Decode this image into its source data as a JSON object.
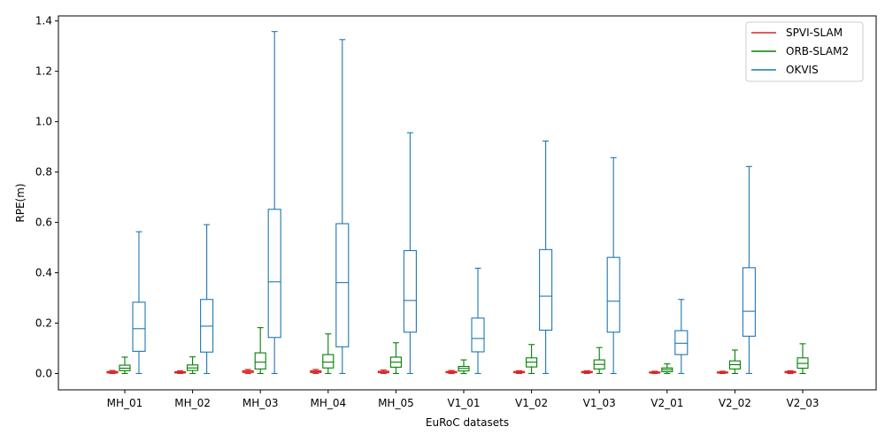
{
  "chart_data": {
    "type": "box",
    "title": "",
    "xlabel": "EuRoC datasets",
    "ylabel": "RPE(m)",
    "ylim": [
      -0.065,
      1.42
    ],
    "yticks": [
      0.0,
      0.2,
      0.4,
      0.6,
      0.8,
      1.0,
      1.2,
      1.4
    ],
    "ytick_labels": [
      "0.0",
      "0.2",
      "0.4",
      "0.6",
      "0.8",
      "1.0",
      "1.2",
      "1.4"
    ],
    "grid": false,
    "legend_position": "top-right",
    "categories": [
      "MH_01",
      "MH_02",
      "MH_03",
      "MH_04",
      "MH_05",
      "V1_01",
      "V1_02",
      "V1_03",
      "V2_01",
      "V2_02",
      "V2_03"
    ],
    "series": [
      {
        "name": "SPVI-SLAM",
        "color": "#d62728",
        "boxes": [
          {
            "category": "MH_01",
            "min": 0.0,
            "q1": 0.002,
            "median": 0.005,
            "q3": 0.008,
            "max": 0.012
          },
          {
            "category": "MH_02",
            "min": 0.0,
            "q1": 0.002,
            "median": 0.004,
            "q3": 0.007,
            "max": 0.011
          },
          {
            "category": "MH_03",
            "min": 0.0,
            "q1": 0.004,
            "median": 0.008,
            "q3": 0.011,
            "max": 0.016
          },
          {
            "category": "MH_04",
            "min": 0.0,
            "q1": 0.004,
            "median": 0.007,
            "q3": 0.011,
            "max": 0.016
          },
          {
            "category": "MH_05",
            "min": 0.0,
            "q1": 0.003,
            "median": 0.006,
            "q3": 0.009,
            "max": 0.014
          },
          {
            "category": "V1_01",
            "min": 0.0,
            "q1": 0.003,
            "median": 0.005,
            "q3": 0.008,
            "max": 0.012
          },
          {
            "category": "V1_02",
            "min": 0.0,
            "q1": 0.003,
            "median": 0.005,
            "q3": 0.008,
            "max": 0.011
          },
          {
            "category": "V1_03",
            "min": 0.0,
            "q1": 0.003,
            "median": 0.005,
            "q3": 0.008,
            "max": 0.011
          },
          {
            "category": "V2_01",
            "min": 0.0,
            "q1": 0.002,
            "median": 0.004,
            "q3": 0.006,
            "max": 0.009
          },
          {
            "category": "V2_02",
            "min": 0.0,
            "q1": 0.002,
            "median": 0.004,
            "q3": 0.006,
            "max": 0.009
          },
          {
            "category": "V2_03",
            "min": 0.0,
            "q1": 0.003,
            "median": 0.005,
            "q3": 0.008,
            "max": 0.011
          }
        ]
      },
      {
        "name": "ORB-SLAM2",
        "color": "#008000",
        "boxes": [
          {
            "category": "MH_01",
            "min": 0.0,
            "q1": 0.011,
            "median": 0.021,
            "q3": 0.033,
            "max": 0.065
          },
          {
            "category": "MH_02",
            "min": 0.0,
            "q1": 0.012,
            "median": 0.022,
            "q3": 0.034,
            "max": 0.066
          },
          {
            "category": "MH_03",
            "min": 0.0,
            "q1": 0.018,
            "median": 0.045,
            "q3": 0.082,
            "max": 0.182
          },
          {
            "category": "MH_04",
            "min": 0.0,
            "q1": 0.022,
            "median": 0.045,
            "q3": 0.075,
            "max": 0.157
          },
          {
            "category": "MH_05",
            "min": 0.0,
            "q1": 0.025,
            "median": 0.045,
            "q3": 0.065,
            "max": 0.122
          },
          {
            "category": "V1_01",
            "min": 0.0,
            "q1": 0.01,
            "median": 0.02,
            "q3": 0.028,
            "max": 0.054
          },
          {
            "category": "V1_02",
            "min": 0.0,
            "q1": 0.026,
            "median": 0.045,
            "q3": 0.062,
            "max": 0.115
          },
          {
            "category": "V1_03",
            "min": 0.0,
            "q1": 0.018,
            "median": 0.036,
            "q3": 0.054,
            "max": 0.103
          },
          {
            "category": "V2_01",
            "min": 0.0,
            "q1": 0.007,
            "median": 0.015,
            "q3": 0.022,
            "max": 0.038
          },
          {
            "category": "V2_02",
            "min": 0.0,
            "q1": 0.018,
            "median": 0.035,
            "q3": 0.05,
            "max": 0.093
          },
          {
            "category": "V2_03",
            "min": 0.0,
            "q1": 0.021,
            "median": 0.04,
            "q3": 0.062,
            "max": 0.118
          }
        ]
      },
      {
        "name": "OKVIS",
        "color": "#1f77b4",
        "boxes": [
          {
            "category": "MH_01",
            "min": 0.0,
            "q1": 0.088,
            "median": 0.178,
            "q3": 0.283,
            "max": 0.563
          },
          {
            "category": "MH_02",
            "min": 0.0,
            "q1": 0.085,
            "median": 0.188,
            "q3": 0.294,
            "max": 0.591
          },
          {
            "category": "MH_03",
            "min": 0.0,
            "q1": 0.143,
            "median": 0.364,
            "q3": 0.652,
            "max": 1.358
          },
          {
            "category": "MH_04",
            "min": 0.0,
            "q1": 0.106,
            "median": 0.361,
            "q3": 0.595,
            "max": 1.326
          },
          {
            "category": "MH_05",
            "min": 0.0,
            "q1": 0.164,
            "median": 0.29,
            "q3": 0.488,
            "max": 0.956
          },
          {
            "category": "V1_01",
            "min": 0.0,
            "q1": 0.086,
            "median": 0.139,
            "q3": 0.22,
            "max": 0.418
          },
          {
            "category": "V1_02",
            "min": 0.0,
            "q1": 0.172,
            "median": 0.307,
            "q3": 0.492,
            "max": 0.923
          },
          {
            "category": "V1_03",
            "min": 0.0,
            "q1": 0.164,
            "median": 0.287,
            "q3": 0.461,
            "max": 0.857
          },
          {
            "category": "V2_01",
            "min": 0.0,
            "q1": 0.075,
            "median": 0.12,
            "q3": 0.17,
            "max": 0.294
          },
          {
            "category": "V2_02",
            "min": 0.0,
            "q1": 0.148,
            "median": 0.247,
            "q3": 0.42,
            "max": 0.822
          }
        ]
      }
    ]
  }
}
